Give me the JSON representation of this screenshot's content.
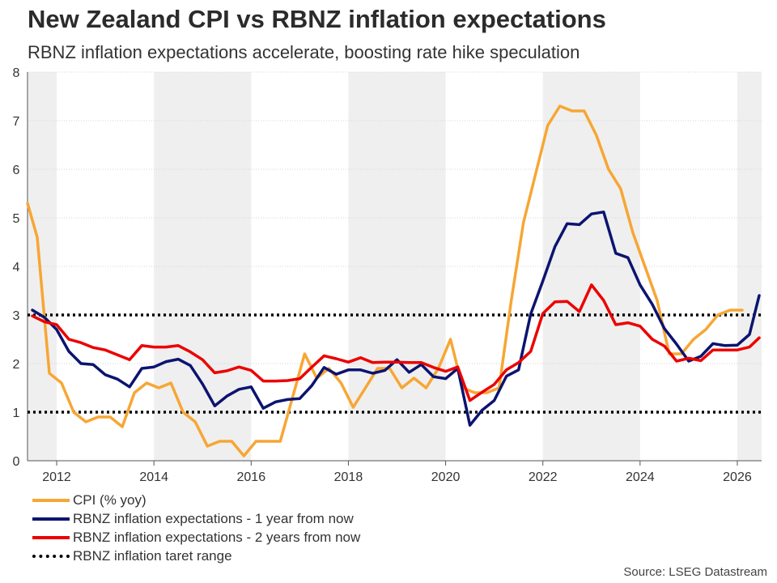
{
  "chart_data": {
    "type": "line",
    "title": "New Zealand CPI vs RBNZ inflation expectations",
    "subtitle": "RBNZ inflation expectations accelerate, boosting rate hike speculation",
    "source": "Source: LSEG Datastream",
    "xlim": [
      2011.4,
      2026.5
    ],
    "ylim": [
      0,
      8
    ],
    "x_ticks": [
      2012,
      2014,
      2016,
      2018,
      2020,
      2022,
      2024,
      2026
    ],
    "y_ticks": [
      0,
      1,
      2,
      3,
      4,
      5,
      6,
      7,
      8
    ],
    "shaded_bands": [
      [
        2011.4,
        2012
      ],
      [
        2014,
        2016
      ],
      [
        2018,
        2020
      ],
      [
        2022,
        2024
      ],
      [
        2026,
        2026.5
      ]
    ],
    "legend_position": "bottom-left",
    "series": [
      {
        "name": "CPI (% yoy)",
        "color": "#F7A634",
        "style": "solid",
        "x": [
          2011.4,
          2011.6,
          2011.85,
          2012.1,
          2012.35,
          2012.6,
          2012.85,
          2013.1,
          2013.35,
          2013.6,
          2013.85,
          2014.1,
          2014.35,
          2014.6,
          2014.85,
          2015.1,
          2015.35,
          2015.6,
          2015.85,
          2016.1,
          2016.35,
          2016.6,
          2016.85,
          2017.1,
          2017.35,
          2017.6,
          2017.85,
          2018.1,
          2018.35,
          2018.6,
          2018.85,
          2019.1,
          2019.35,
          2019.6,
          2019.85,
          2020.1,
          2020.35,
          2020.6,
          2020.85,
          2021.1,
          2021.35,
          2021.6,
          2021.85,
          2022.1,
          2022.35,
          2022.6,
          2022.85,
          2023.1,
          2023.35,
          2023.6,
          2023.85,
          2024.1,
          2024.35,
          2024.6,
          2024.85,
          2025.1,
          2025.35,
          2025.6,
          2025.85,
          2026.1
        ],
        "y": [
          5.3,
          4.6,
          1.8,
          1.6,
          1.0,
          0.8,
          0.9,
          0.9,
          0.7,
          1.4,
          1.6,
          1.5,
          1.6,
          1.0,
          0.8,
          0.3,
          0.4,
          0.4,
          0.1,
          0.4,
          0.4,
          0.4,
          1.3,
          2.2,
          1.7,
          1.9,
          1.6,
          1.1,
          1.5,
          1.9,
          1.9,
          1.5,
          1.7,
          1.5,
          1.9,
          2.5,
          1.5,
          1.4,
          1.4,
          1.5,
          3.3,
          4.9,
          5.9,
          6.9,
          7.3,
          7.2,
          7.2,
          6.7,
          6.0,
          5.6,
          4.7,
          4.0,
          3.3,
          2.2,
          2.2,
          2.5,
          2.7,
          3.0,
          3.1,
          3.1
        ]
      },
      {
        "name": "RBNZ inflation expectations - 1 year from now",
        "color": "#0C1470",
        "style": "solid",
        "x": [
          2011.5,
          2011.75,
          2012.0,
          2012.25,
          2012.5,
          2012.75,
          2013.0,
          2013.25,
          2013.5,
          2013.75,
          2014.0,
          2014.25,
          2014.5,
          2014.75,
          2015.0,
          2015.25,
          2015.5,
          2015.75,
          2016.0,
          2016.25,
          2016.5,
          2016.75,
          2017.0,
          2017.25,
          2017.5,
          2017.75,
          2018.0,
          2018.25,
          2018.5,
          2018.75,
          2019.0,
          2019.25,
          2019.5,
          2019.75,
          2020.0,
          2020.25,
          2020.5,
          2020.75,
          2021.0,
          2021.25,
          2021.5,
          2021.75,
          2022.0,
          2022.25,
          2022.5,
          2022.75,
          2023.0,
          2023.25,
          2023.5,
          2023.75,
          2024.0,
          2024.25,
          2024.5,
          2024.75,
          2025.0,
          2025.25,
          2025.5,
          2025.75,
          2026.0,
          2026.25,
          2026.45
        ],
        "y": [
          3.1,
          2.95,
          2.7,
          2.25,
          2.0,
          1.98,
          1.77,
          1.68,
          1.52,
          1.9,
          1.93,
          2.04,
          2.09,
          1.96,
          1.58,
          1.13,
          1.33,
          1.47,
          1.52,
          1.08,
          1.21,
          1.26,
          1.28,
          1.55,
          1.92,
          1.78,
          1.87,
          1.87,
          1.8,
          1.86,
          2.08,
          1.82,
          1.98,
          1.73,
          1.69,
          1.9,
          0.73,
          1.04,
          1.24,
          1.74,
          1.87,
          3.02,
          3.7,
          4.41,
          4.88,
          4.86,
          5.08,
          5.12,
          4.27,
          4.18,
          3.62,
          3.22,
          2.72,
          2.4,
          2.05,
          2.15,
          2.41,
          2.37,
          2.38,
          2.6,
          3.4
        ]
      },
      {
        "name": "RBNZ inflation expectations - 2 years from now",
        "color": "#EC0000",
        "style": "solid",
        "x": [
          2011.5,
          2011.75,
          2012.0,
          2012.25,
          2012.5,
          2012.75,
          2013.0,
          2013.25,
          2013.5,
          2013.75,
          2014.0,
          2014.25,
          2014.5,
          2014.75,
          2015.0,
          2015.25,
          2015.5,
          2015.75,
          2016.0,
          2016.25,
          2016.5,
          2016.75,
          2017.0,
          2017.25,
          2017.5,
          2017.75,
          2018.0,
          2018.25,
          2018.5,
          2018.75,
          2019.0,
          2019.25,
          2019.5,
          2019.75,
          2020.0,
          2020.25,
          2020.5,
          2020.75,
          2021.0,
          2021.25,
          2021.5,
          2021.75,
          2022.0,
          2022.25,
          2022.5,
          2022.75,
          2023.0,
          2023.25,
          2023.5,
          2023.75,
          2024.0,
          2024.25,
          2024.5,
          2024.75,
          2025.0,
          2025.25,
          2025.5,
          2025.75,
          2026.0,
          2026.25,
          2026.45
        ],
        "y": [
          2.98,
          2.86,
          2.8,
          2.5,
          2.43,
          2.33,
          2.28,
          2.18,
          2.08,
          2.37,
          2.34,
          2.34,
          2.37,
          2.24,
          2.08,
          1.81,
          1.85,
          1.93,
          1.86,
          1.64,
          1.64,
          1.65,
          1.69,
          1.93,
          2.16,
          2.1,
          2.03,
          2.12,
          2.02,
          2.03,
          2.03,
          2.02,
          2.02,
          1.92,
          1.84,
          1.93,
          1.24,
          1.41,
          1.57,
          1.87,
          2.02,
          2.25,
          3.03,
          3.27,
          3.28,
          3.07,
          3.62,
          3.3,
          2.8,
          2.84,
          2.77,
          2.5,
          2.36,
          2.05,
          2.11,
          2.06,
          2.28,
          2.28,
          2.28,
          2.34,
          2.53
        ]
      },
      {
        "name": "RBNZ inflation taret range",
        "color": "#000000",
        "style": "dotted",
        "hlines": [
          1,
          3
        ]
      }
    ]
  }
}
